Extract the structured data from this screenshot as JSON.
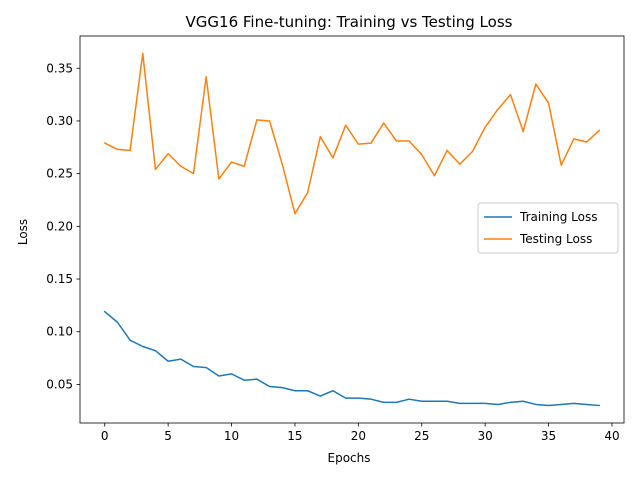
{
  "chart_data": {
    "type": "line",
    "title": "VGG16 Fine-tuning: Training vs Testing Loss",
    "xlabel": "Epochs",
    "ylabel": "Loss",
    "xlim": [
      -1.95,
      40.95
    ],
    "ylim": [
      0.0134,
      0.3806
    ],
    "xticks": [
      0,
      5,
      10,
      15,
      20,
      25,
      30,
      35,
      40
    ],
    "yticks": [
      0.05,
      0.1,
      0.15,
      0.2,
      0.25,
      0.3,
      0.35
    ],
    "ytick_labels": [
      "0.05",
      "0.10",
      "0.15",
      "0.20",
      "0.25",
      "0.30",
      "0.35"
    ],
    "grid": false,
    "legend_position": "center-right",
    "x": [
      0,
      1,
      2,
      3,
      4,
      5,
      6,
      7,
      8,
      9,
      10,
      11,
      12,
      13,
      14,
      15,
      16,
      17,
      18,
      19,
      20,
      21,
      22,
      23,
      24,
      25,
      26,
      27,
      28,
      29,
      30,
      31,
      32,
      33,
      34,
      35,
      36,
      37,
      38,
      39
    ],
    "series": [
      {
        "name": "Training Loss",
        "color": "#1f77b4",
        "values": [
          0.119,
          0.109,
          0.092,
          0.086,
          0.082,
          0.072,
          0.074,
          0.067,
          0.066,
          0.058,
          0.06,
          0.054,
          0.055,
          0.048,
          0.047,
          0.044,
          0.044,
          0.039,
          0.044,
          0.037,
          0.037,
          0.036,
          0.033,
          0.033,
          0.036,
          0.034,
          0.034,
          0.034,
          0.032,
          0.032,
          0.032,
          0.031,
          0.033,
          0.034,
          0.031,
          0.03,
          0.031,
          0.032,
          0.031,
          0.03
        ]
      },
      {
        "name": "Testing Loss",
        "color": "#ff7f0e",
        "values": [
          0.279,
          0.273,
          0.272,
          0.364,
          0.254,
          0.269,
          0.257,
          0.25,
          0.342,
          0.245,
          0.261,
          0.257,
          0.301,
          0.3,
          0.259,
          0.212,
          0.232,
          0.285,
          0.265,
          0.296,
          0.278,
          0.279,
          0.298,
          0.281,
          0.281,
          0.268,
          0.248,
          0.272,
          0.259,
          0.271,
          0.294,
          0.311,
          0.325,
          0.29,
          0.335,
          0.317,
          0.258,
          0.283,
          0.28,
          0.291
        ]
      }
    ]
  }
}
